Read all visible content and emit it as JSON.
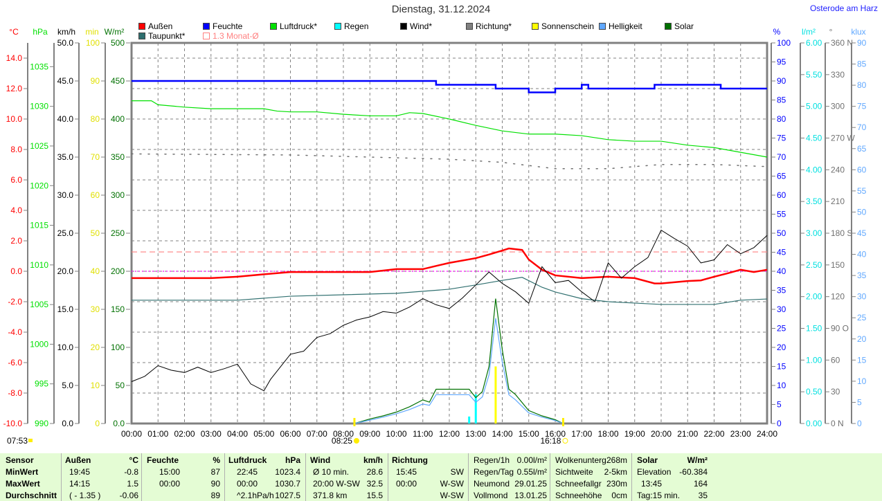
{
  "header": {
    "title": "Dienstag, 31.12.2024",
    "location": "Osterode am Harz"
  },
  "legend": [
    {
      "label": "Außen",
      "color": "#ff0000"
    },
    {
      "label": "Feuchte",
      "color": "#0000ff"
    },
    {
      "label": "Luftdruck*",
      "color": "#00e000"
    },
    {
      "label": "Regen",
      "color": "#00ffff"
    },
    {
      "label": "Wind*",
      "color": "#000000"
    },
    {
      "label": "Richtung*",
      "color": "#808080"
    },
    {
      "label": "Sonnenschein",
      "color": "#ffff00"
    },
    {
      "label": "Helligkeit",
      "color": "#60a8ff"
    },
    {
      "label": "Solar",
      "color": "#007000"
    },
    {
      "label": "Taupunkt*",
      "color": "#2f6f6f"
    },
    {
      "label": "1.3 Monat-Ø",
      "color": "#ff8080"
    }
  ],
  "chart_data": {
    "type": "line",
    "title": "Dienstag, 31.12.2024",
    "x_ticks": [
      "00:00",
      "01:00",
      "02:00",
      "03:00",
      "04:00",
      "05:00",
      "06:00",
      "07:00",
      "08:00",
      "09:00",
      "10:00",
      "11:00",
      "12:00",
      "13:00",
      "14:00",
      "15:00",
      "16:00",
      "17:00",
      "18:00",
      "19:00",
      "20:00",
      "21:00",
      "22:00",
      "23:00",
      "24:00"
    ],
    "grid": true,
    "axes": {
      "temp": {
        "unit": "°C",
        "color": "#ff0000",
        "range": [
          -10,
          15
        ],
        "ticks": [
          "14.0",
          "12.0",
          "10.0",
          "8.0",
          "6.0",
          "4.0",
          "2.0",
          "0.0",
          "-2.0",
          "-4.0",
          "-6.0",
          "-8.0",
          "-10.0"
        ],
        "tick_values": [
          14,
          12,
          10,
          8,
          6,
          4,
          2,
          0,
          -2,
          -4,
          -6,
          -8,
          -10
        ]
      },
      "pressure": {
        "unit": "hPa",
        "color": "#00e000",
        "range": [
          990,
          1038.0
        ],
        "ticks": [
          "1035",
          "1030",
          "1025",
          "1020",
          "1015",
          "1010",
          "1005",
          "1000",
          "995",
          "990"
        ],
        "tick_values": [
          1035,
          1030,
          1025,
          1020,
          1015,
          1010,
          1005,
          1000,
          995,
          990
        ]
      },
      "wind": {
        "unit": "km/h",
        "color": "#000000",
        "range": [
          0,
          50
        ],
        "ticks": [
          "50.0",
          "45.0",
          "40.0",
          "35.0",
          "30.0",
          "25.0",
          "20.0",
          "15.0",
          "10.0",
          "5.0",
          "0.0"
        ],
        "tick_values": [
          50,
          45,
          40,
          35,
          30,
          25,
          20,
          15,
          10,
          5,
          0
        ]
      },
      "sunshine": {
        "unit": "min",
        "color": "#e0e000",
        "range": [
          0,
          100
        ],
        "ticks": [
          "100",
          "90",
          "80",
          "70",
          "60",
          "50",
          "40",
          "30",
          "20",
          "10",
          "0"
        ],
        "tick_values": [
          100,
          90,
          80,
          70,
          60,
          50,
          40,
          30,
          20,
          10,
          0
        ]
      },
      "solar": {
        "unit": "W/m²",
        "color": "#007000",
        "range": [
          0,
          500
        ],
        "ticks": [
          "500",
          "450",
          "400",
          "350",
          "300",
          "250",
          "200",
          "150",
          "100",
          "50",
          "0.0"
        ],
        "tick_values": [
          500,
          450,
          400,
          350,
          300,
          250,
          200,
          150,
          100,
          50,
          0
        ]
      },
      "humidity": {
        "unit": "%",
        "color": "#0000ff",
        "range": [
          0,
          100
        ],
        "ticks": [
          "100",
          "95",
          "90",
          "85",
          "80",
          "75",
          "70",
          "65",
          "60",
          "55",
          "50",
          "45",
          "40",
          "35",
          "30",
          "25",
          "20",
          "15",
          "10",
          "5",
          "0"
        ],
        "tick_values": [
          100,
          95,
          90,
          85,
          80,
          75,
          70,
          65,
          60,
          55,
          50,
          45,
          40,
          35,
          30,
          25,
          20,
          15,
          10,
          5,
          0
        ]
      },
      "rain": {
        "unit": "l/m²",
        "color": "#00e0e0",
        "range": [
          0,
          6
        ],
        "ticks": [
          "6.00",
          "5.50",
          "5.00",
          "4.50",
          "4.00",
          "3.50",
          "3.00",
          "2.50",
          "2.00",
          "1.50",
          "1.00",
          "0.50",
          "0.00"
        ],
        "tick_values": [
          6,
          5.5,
          5,
          4.5,
          4,
          3.5,
          3,
          2.5,
          2,
          1.5,
          1,
          0.5,
          0
        ]
      },
      "direction": {
        "unit": "°",
        "color": "#707070",
        "range": [
          0,
          360
        ],
        "ticks": [
          "360 N",
          "330",
          "300",
          "270 W",
          "240",
          "210",
          "180 S",
          "150",
          "120",
          "90 O",
          "60",
          "30",
          "0 N"
        ],
        "tick_values": [
          360,
          330,
          300,
          270,
          240,
          210,
          180,
          150,
          120,
          90,
          60,
          30,
          0
        ]
      },
      "brightness": {
        "unit": "klux",
        "color": "#60a8ff",
        "range": [
          0,
          90
        ],
        "ticks": [
          "90",
          "85",
          "80",
          "75",
          "70",
          "65",
          "60",
          "55",
          "50",
          "45",
          "40",
          "35",
          "30",
          "25",
          "20",
          "15",
          "10",
          "5",
          "0"
        ],
        "tick_values": [
          90,
          85,
          80,
          75,
          70,
          65,
          60,
          55,
          50,
          45,
          40,
          35,
          30,
          25,
          20,
          15,
          10,
          5,
          0
        ]
      }
    },
    "series": [
      {
        "name": "Außen",
        "axis": "temp",
        "color": "#ff0000",
        "width": 2.5,
        "x": [
          "00:00",
          "01:00",
          "02:00",
          "03:00",
          "04:00",
          "05:00",
          "06:00",
          "08:00",
          "09:00",
          "10:00",
          "11:00",
          "11:30",
          "12:00",
          "13:00",
          "13:30",
          "14:00",
          "14:15",
          "14:45",
          "15:00",
          "15:30",
          "16:00",
          "17:00",
          "18:00",
          "19:00",
          "19:45",
          "20:00",
          "21:00",
          "21:30",
          "22:00",
          "22:30",
          "23:00",
          "23:30",
          "24:00"
        ],
        "y": [
          -0.45,
          -0.45,
          -0.45,
          -0.45,
          -0.36,
          -0.2,
          -0.05,
          -0.05,
          -0.05,
          0.14,
          0.14,
          0.35,
          0.55,
          0.86,
          1.1,
          1.36,
          1.5,
          1.4,
          0.77,
          0.1,
          -0.27,
          -0.45,
          -0.36,
          -0.45,
          -0.8,
          -0.8,
          -0.64,
          -0.6,
          -0.36,
          -0.14,
          0.1,
          -0.05,
          0.1
        ]
      },
      {
        "name": "Taupunkt*",
        "axis": "temp",
        "color": "#2f6f6f",
        "width": 1.2,
        "x": [
          "00:00",
          "04:00",
          "06:00",
          "10:00",
          "12:00",
          "13:00",
          "14:00",
          "14:45",
          "15:30",
          "16:00",
          "17:00",
          "18:00",
          "20:00",
          "22:00",
          "23:00",
          "24:00"
        ],
        "y": [
          -1.9,
          -1.9,
          -1.64,
          -1.45,
          -1.18,
          -0.9,
          -0.6,
          -0.4,
          -1.05,
          -1.36,
          -1.8,
          -2.0,
          -2.18,
          -2.18,
          -1.9,
          -1.82
        ]
      },
      {
        "name": "Feuchte",
        "axis": "humidity",
        "color": "#0000ff",
        "width": 2.5,
        "step": true,
        "x": [
          "00:00",
          "11:15",
          "11:30",
          "13:45",
          "15:00",
          "16:00",
          "16:45",
          "17:00",
          "17:15",
          "19:30",
          "19:45",
          "22:00",
          "22:15",
          "24:00"
        ],
        "y": [
          90,
          90,
          89,
          88,
          87,
          88,
          88,
          89,
          88,
          88,
          89,
          89,
          88,
          88
        ]
      },
      {
        "name": "Luftdruck*",
        "axis": "pressure",
        "color": "#00e000",
        "width": 1.2,
        "x": [
          "00:00",
          "00:45",
          "01:00",
          "02:00",
          "03:00",
          "05:00",
          "05:30",
          "06:00",
          "07:00",
          "08:00",
          "09:00",
          "10:00",
          "10:30",
          "11:00",
          "12:00",
          "13:00",
          "14:00",
          "15:00",
          "16:00",
          "17:00",
          "18:00",
          "19:00",
          "20:00",
          "21:00",
          "22:00",
          "23:00",
          "24:00"
        ],
        "y": [
          1030.7,
          1030.7,
          1030.2,
          1029.9,
          1029.7,
          1029.7,
          1029.4,
          1029.3,
          1029.3,
          1029.0,
          1028.8,
          1028.8,
          1029.2,
          1029.1,
          1028.4,
          1027.6,
          1026.9,
          1026.5,
          1026.5,
          1026.3,
          1025.8,
          1025.6,
          1025.6,
          1025.1,
          1024.8,
          1024.2,
          1023.6
        ]
      },
      {
        "name": "Richtung*",
        "axis": "direction",
        "color": "#707070",
        "width": 1.5,
        "dotted": true,
        "x": [
          "00:00",
          "06:00",
          "12:00",
          "14:00",
          "16:00",
          "18:00",
          "20:00",
          "22:00",
          "24:00"
        ],
        "y": [
          255,
          254,
          250,
          247,
          241,
          241,
          245,
          245,
          243
        ]
      },
      {
        "name": "Wind*",
        "axis": "wind",
        "color": "#000000",
        "width": 1,
        "x": [
          "00:00",
          "00:30",
          "01:00",
          "01:30",
          "02:00",
          "02:30",
          "03:00",
          "03:30",
          "04:00",
          "04:30",
          "05:00",
          "05:15",
          "06:00",
          "06:30",
          "07:00",
          "07:30",
          "08:00",
          "08:30",
          "09:00",
          "09:30",
          "10:00",
          "10:30",
          "11:00",
          "11:30",
          "12:00",
          "12:30",
          "13:00",
          "13:30",
          "14:00",
          "14:30",
          "15:00",
          "15:30",
          "16:00",
          "16:30",
          "17:00",
          "17:30",
          "18:00",
          "18:30",
          "19:00",
          "19:30",
          "20:00",
          "20:30",
          "21:00",
          "21:30",
          "22:00",
          "22:30",
          "23:00",
          "23:30",
          "24:00"
        ],
        "y": [
          5.5,
          6.2,
          7.6,
          7.0,
          6.7,
          7.4,
          6.7,
          7.2,
          7.8,
          5.2,
          4.3,
          5.8,
          9.1,
          9.5,
          11.3,
          11.8,
          12.9,
          13.6,
          14.0,
          14.7,
          14.5,
          15.3,
          16.4,
          15.6,
          15.1,
          16.5,
          18.2,
          19.9,
          18.4,
          17.3,
          15.8,
          20.6,
          18.5,
          18.8,
          17.3,
          16.0,
          21.1,
          19.1,
          20.6,
          21.8,
          25.4,
          24.3,
          23.3,
          21.1,
          21.5,
          23.5,
          22.3,
          23.1,
          24.7
        ]
      },
      {
        "name": "Solar",
        "axis": "solar",
        "color": "#007000",
        "width": 1.2,
        "x": [
          "08:25",
          "09:00",
          "09:30",
          "10:00",
          "10:30",
          "11:00",
          "11:15",
          "11:30",
          "12:00",
          "12:45",
          "13:00",
          "13:15",
          "13:30",
          "13:45",
          "14:00",
          "14:15",
          "14:30",
          "15:00",
          "15:30",
          "16:00",
          "16:18"
        ],
        "y": [
          0,
          6,
          10,
          15,
          22,
          31,
          28,
          45,
          45,
          45,
          34,
          42,
          75,
          164,
          97,
          45,
          38,
          17,
          10,
          5,
          0
        ]
      },
      {
        "name": "Helligkeit",
        "axis": "brightness",
        "color": "#60a8ff",
        "width": 1.2,
        "x": [
          "08:25",
          "09:00",
          "09:30",
          "10:00",
          "10:30",
          "11:00",
          "11:15",
          "11:30",
          "12:00",
          "12:45",
          "13:00",
          "13:15",
          "13:30",
          "13:45",
          "14:00",
          "14:15",
          "14:30",
          "15:00",
          "15:30",
          "16:00",
          "16:18"
        ],
        "y": [
          0,
          0.8,
          1.5,
          2.3,
          3.3,
          4.6,
          4.3,
          6.8,
          6.8,
          6.8,
          5.0,
          6.3,
          11.5,
          24.9,
          14.5,
          6.8,
          5.6,
          2.5,
          1.5,
          0.7,
          0
        ]
      }
    ],
    "bars": [
      {
        "name": "Regen",
        "axis": "rain",
        "color": "#00ffff",
        "x": [
          "12:45",
          "13:00"
        ],
        "y": [
          0.11,
          0.46
        ]
      },
      {
        "name": "Sonnenschein",
        "axis": "sunshine",
        "color": "#ffff00",
        "x": [
          "13:45"
        ],
        "y": [
          15
        ]
      }
    ],
    "reference_lines": [
      {
        "name": "1.3 Monat-Ø",
        "axis": "temp",
        "value": 1.27,
        "color": "#ff8080"
      },
      {
        "axis": "temp",
        "value": 0,
        "color": "#ff00ff"
      }
    ],
    "sun_events": [
      {
        "label": "08:25",
        "time": "08:25",
        "type": "sunrise"
      },
      {
        "label": "16:18",
        "time": "16:18",
        "type": "sunset"
      },
      {
        "label": "07:53",
        "type": "dawn"
      }
    ]
  },
  "table": {
    "sensor": {
      "header": "Sensor",
      "rows": [
        "MinWert",
        "MaxWert",
        "Durchschnitt"
      ]
    },
    "aussen": {
      "header": "Außen",
      "unit": "°C",
      "rows": [
        [
          "19:45",
          "-0.8"
        ],
        [
          "14:15",
          "1.5"
        ],
        [
          "( - 1.35 )",
          "-0.06"
        ]
      ]
    },
    "feuchte": {
      "header": "Feuchte",
      "unit": "%",
      "rows": [
        [
          "15:00",
          "87"
        ],
        [
          "00:00",
          "90"
        ],
        [
          "",
          "89"
        ]
      ]
    },
    "luftdruck": {
      "header": "Luftdruck",
      "unit": "hPa",
      "rows": [
        [
          "22:45",
          "1023.4"
        ],
        [
          "00:00",
          "1030.7"
        ],
        [
          "^2.1hPa/h",
          "1027.5"
        ]
      ]
    },
    "wind": {
      "header": "Wind",
      "unit": "km/h",
      "rows": [
        [
          "Ø 10 min.",
          "28.6"
        ],
        [
          "20:00   W-SW",
          "32.5"
        ],
        [
          "371.8 km",
          "15.5"
        ]
      ]
    },
    "richtung": {
      "header": "Richtung",
      "rows": [
        [
          "15:45",
          "SW"
        ],
        [
          "00:00",
          "W-SW"
        ],
        [
          "",
          "W-SW"
        ]
      ]
    },
    "regen": {
      "rows": [
        [
          "Regen/1h",
          "0.00l/m²"
        ],
        [
          "Regen/Tag",
          "0.55l/m²"
        ],
        [
          "Neumond",
          "29.01.25"
        ],
        [
          "Vollmond",
          "13.01.25"
        ]
      ]
    },
    "wolken": {
      "rows": [
        [
          "Wolkenunterg",
          "268m"
        ],
        [
          "Sichtweite",
          "2-5km"
        ],
        [
          "Schneefallgr",
          "230m"
        ],
        [
          "Schneehöhe",
          "0cm"
        ]
      ]
    },
    "solar": {
      "header": "Solar",
      "unit": "W/m²",
      "rows": [
        [
          "Elevation",
          "-60.384"
        ],
        [
          "13:45",
          "164"
        ],
        [
          "Tag:15 min.",
          "35"
        ]
      ]
    }
  }
}
